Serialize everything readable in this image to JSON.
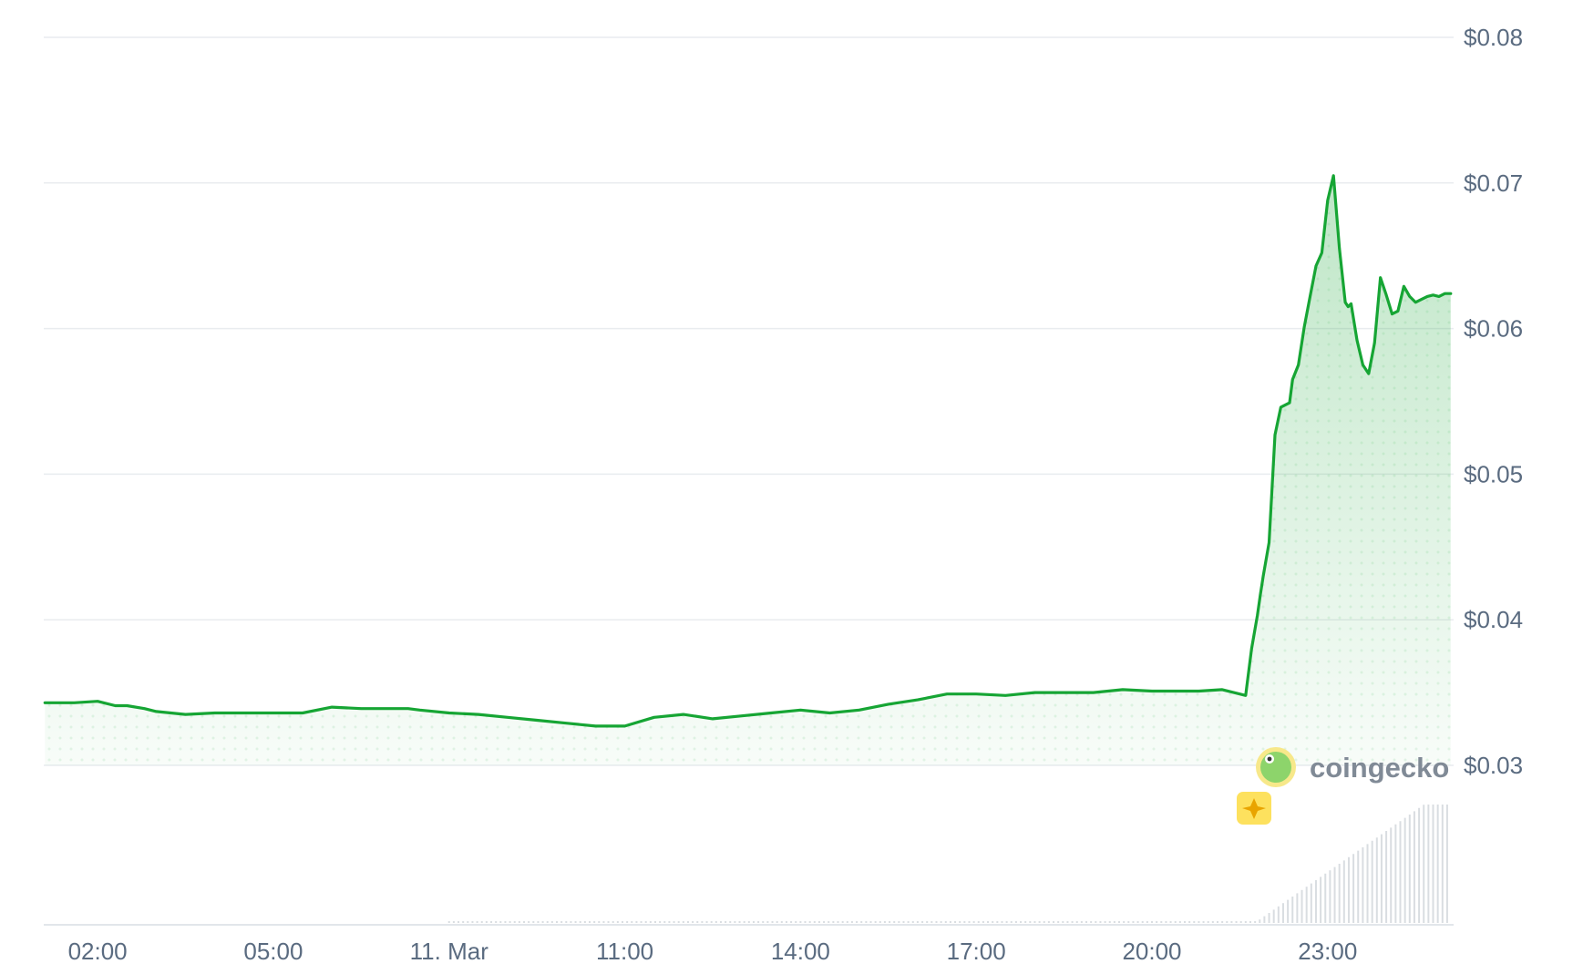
{
  "chart_data": {
    "type": "area",
    "title": "",
    "xlabel": "",
    "ylabel": "",
    "ylim": [
      0.03,
      0.08
    ],
    "y_ticks": [
      "$0.03",
      "$0.04",
      "$0.05",
      "$0.06",
      "$0.07",
      "$0.08"
    ],
    "y_tick_values": [
      0.03,
      0.04,
      0.05,
      0.06,
      0.07,
      0.08
    ],
    "x_ticks": [
      "02:00",
      "05:00",
      "11. Mar",
      "11:00",
      "14:00",
      "17:00",
      "20:00",
      "23:00"
    ],
    "x_tick_hours": [
      2,
      5,
      8,
      11,
      14,
      17,
      20,
      23
    ],
    "xlim_hours": [
      1.08,
      25.15
    ],
    "grid": true,
    "legend": "none",
    "line_color": "#16a534",
    "fill_color": "#16a534",
    "brand": "coingecko",
    "brand_icon": "gecko-icon",
    "badge_icon": "sparkle-icon",
    "series": [
      {
        "x": [
          1.1,
          1.6,
          2.0,
          2.3,
          2.5,
          2.8,
          3.0,
          3.5,
          4.0,
          4.5,
          5.0,
          5.5,
          6.0,
          6.5,
          7.0,
          7.3,
          7.5,
          8.0,
          8.5,
          9.0,
          9.5,
          10.0,
          10.5,
          11.0,
          11.5,
          12.0,
          12.5,
          13.0,
          13.5,
          14.0,
          14.5,
          15.0,
          15.5,
          16.0,
          16.5,
          17.0,
          17.5,
          18.0,
          18.5,
          19.0,
          19.5,
          20.0,
          20.4,
          20.8,
          21.2,
          21.6,
          21.7,
          21.8,
          21.85,
          21.9,
          22.0,
          22.1,
          22.2,
          22.35,
          22.4,
          22.5,
          22.6,
          22.7,
          22.8,
          22.9,
          23.0,
          23.1,
          23.2,
          23.3,
          23.35,
          23.4,
          23.5,
          23.6,
          23.7,
          23.8,
          23.9,
          24.0,
          24.1,
          24.2,
          24.3,
          24.4,
          24.5,
          24.6,
          24.7,
          24.8,
          24.9,
          25.0,
          25.1
        ],
        "y": [
          0.0343,
          0.0343,
          0.0344,
          0.0341,
          0.0341,
          0.0339,
          0.0337,
          0.0335,
          0.0336,
          0.0336,
          0.0336,
          0.0336,
          0.034,
          0.0339,
          0.0339,
          0.0339,
          0.0338,
          0.0336,
          0.0335,
          0.0333,
          0.0331,
          0.0329,
          0.0327,
          0.0327,
          0.0333,
          0.0335,
          0.0332,
          0.0334,
          0.0336,
          0.0338,
          0.0336,
          0.0338,
          0.0342,
          0.0345,
          0.0349,
          0.0349,
          0.0348,
          0.035,
          0.035,
          0.035,
          0.0352,
          0.0351,
          0.0351,
          0.0351,
          0.0352,
          0.0348,
          0.038,
          0.0403,
          0.0417,
          0.043,
          0.0453,
          0.0527,
          0.0546,
          0.0549,
          0.0565,
          0.0575,
          0.0601,
          0.0622,
          0.0643,
          0.0652,
          0.0688,
          0.0705,
          0.0655,
          0.0618,
          0.0615,
          0.0617,
          0.0592,
          0.0575,
          0.0569,
          0.059,
          0.0635,
          0.0623,
          0.061,
          0.0612,
          0.0629,
          0.0622,
          0.0618,
          0.062,
          0.0622,
          0.0623,
          0.0622,
          0.0624,
          0.0624
        ]
      }
    ]
  }
}
